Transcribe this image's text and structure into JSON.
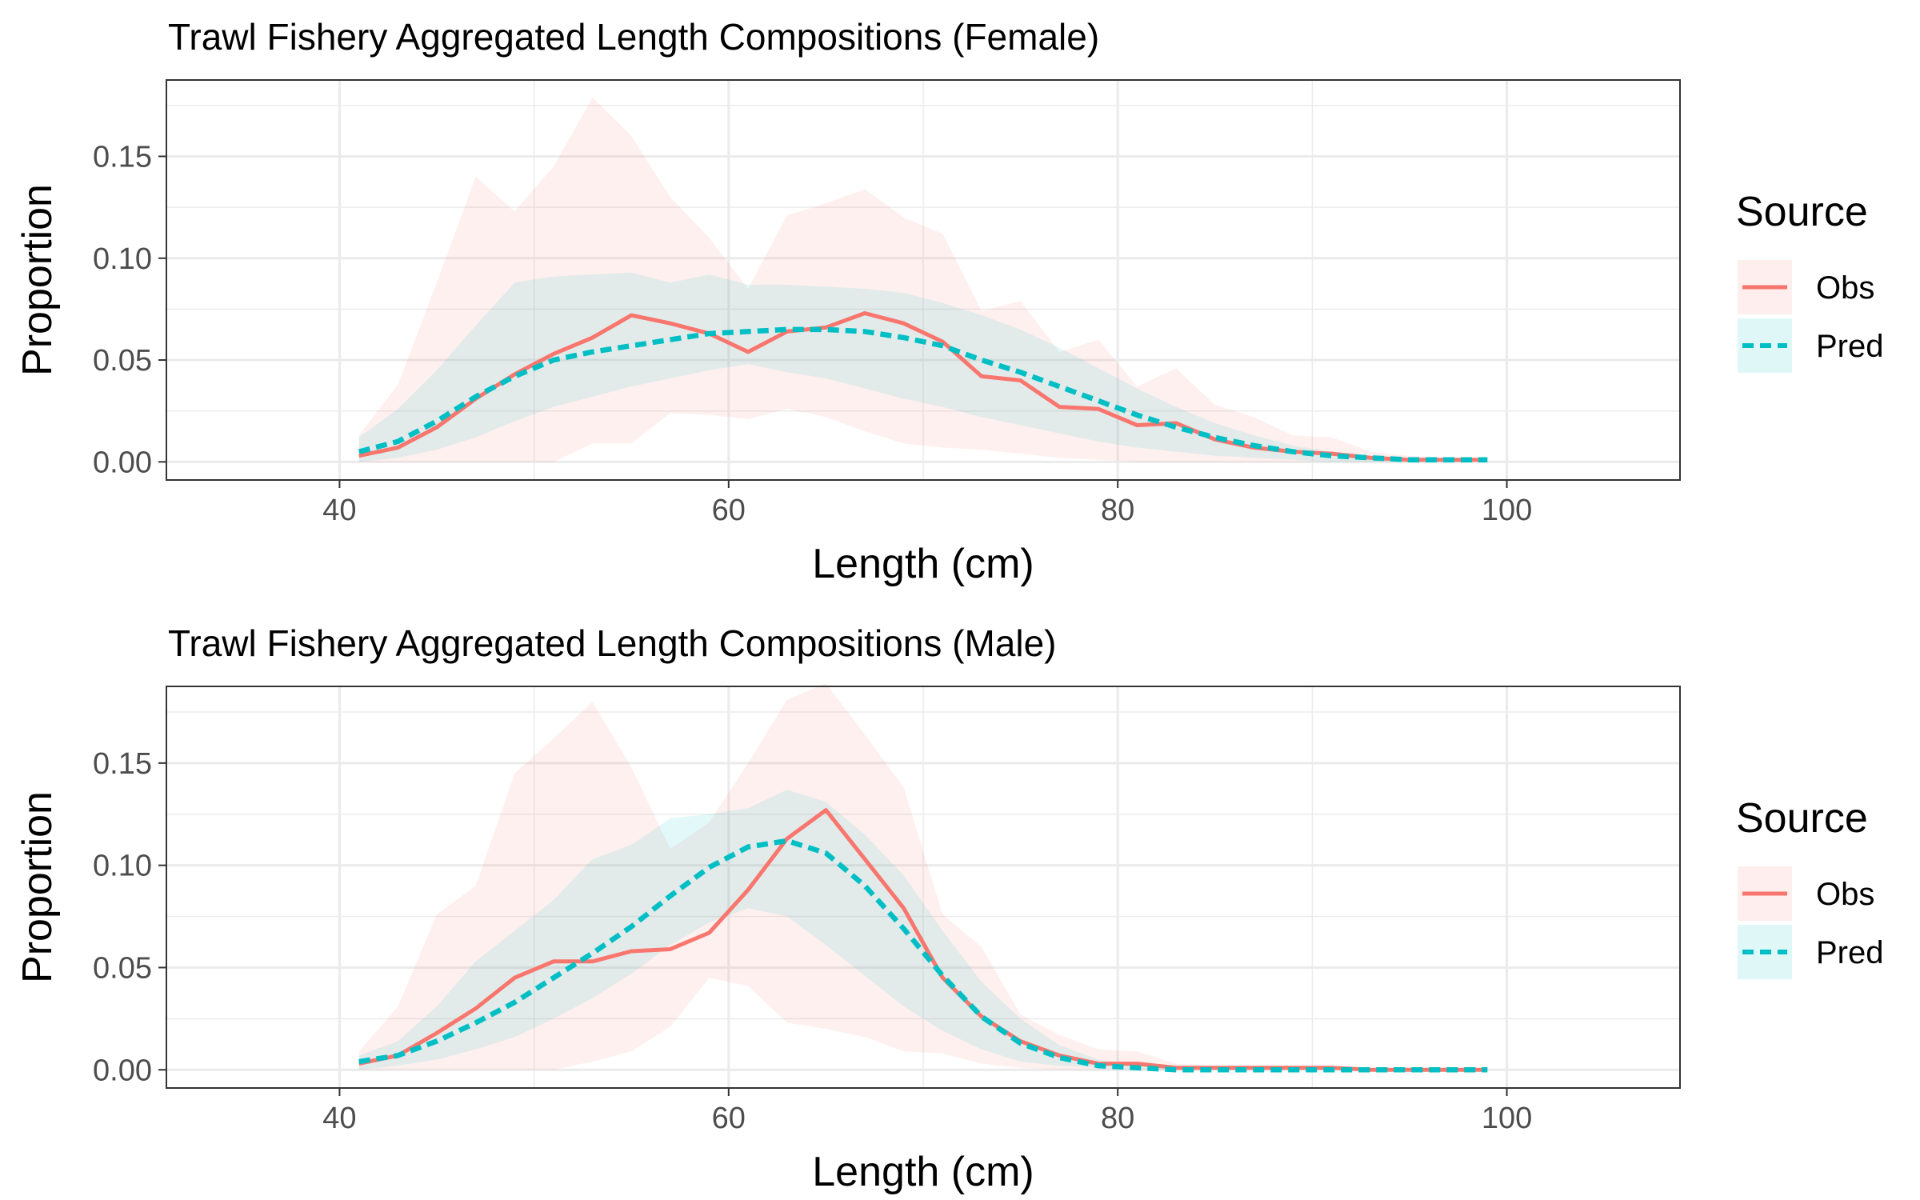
{
  "legend": {
    "title": "Source",
    "entries": [
      {
        "name": "Obs",
        "color": "#F8766D",
        "dash": "solid"
      },
      {
        "name": "Pred",
        "color": "#00BFC4",
        "dash": "dashed"
      }
    ]
  },
  "chart_data": [
    {
      "type": "line",
      "title": "Trawl Fishery Aggregated Length Compositions (Female)",
      "xlabel": "Length (cm)",
      "ylabel": "Proportion",
      "xlim": [
        31.1,
        108.9
      ],
      "ylim": [
        -0.0089,
        0.1875
      ],
      "x_ticks": [
        40,
        60,
        80,
        100
      ],
      "y_ticks": [
        0.0,
        0.05,
        0.1,
        0.15
      ],
      "y_tick_labels": [
        "0.00",
        "0.05",
        "0.10",
        "0.15"
      ],
      "grid": true,
      "legend_position": "right",
      "x": [
        41,
        43,
        45,
        47,
        49,
        51,
        53,
        55,
        57,
        59,
        61,
        63,
        65,
        67,
        69,
        71,
        73,
        75,
        77,
        79,
        81,
        83,
        85,
        87,
        89,
        91,
        93,
        95,
        97,
        99
      ],
      "series": [
        {
          "name": "Obs",
          "color": "#F8766D",
          "values": [
            0.003,
            0.007,
            0.017,
            0.031,
            0.043,
            0.053,
            0.061,
            0.072,
            0.068,
            0.063,
            0.054,
            0.064,
            0.066,
            0.073,
            0.068,
            0.059,
            0.042,
            0.04,
            0.027,
            0.026,
            0.018,
            0.019,
            0.011,
            0.007,
            0.005,
            0.004,
            0.002,
            0.001,
            0.001,
            0.001
          ],
          "lower": [
            0.0,
            0.0,
            0.0,
            0.0,
            0.0,
            0.0,
            0.009,
            0.009,
            0.024,
            0.023,
            0.021,
            0.026,
            0.022,
            0.015,
            0.009,
            0.007,
            0.006,
            0.004,
            0.002,
            0.001,
            0.0,
            0.0,
            0.0,
            0.0,
            0.0,
            0.0,
            0.0,
            0.0,
            0.0,
            0.0
          ],
          "upper": [
            0.013,
            0.038,
            0.088,
            0.14,
            0.123,
            0.145,
            0.179,
            0.16,
            0.13,
            0.11,
            0.085,
            0.121,
            0.127,
            0.134,
            0.12,
            0.112,
            0.074,
            0.079,
            0.054,
            0.06,
            0.037,
            0.046,
            0.028,
            0.022,
            0.013,
            0.012,
            0.005,
            0.003,
            0.002,
            0.002
          ]
        },
        {
          "name": "Pred",
          "color": "#00BFC4",
          "values": [
            0.005,
            0.01,
            0.02,
            0.032,
            0.042,
            0.05,
            0.054,
            0.057,
            0.06,
            0.063,
            0.064,
            0.065,
            0.065,
            0.064,
            0.061,
            0.057,
            0.05,
            0.044,
            0.037,
            0.03,
            0.023,
            0.017,
            0.012,
            0.008,
            0.005,
            0.003,
            0.002,
            0.001,
            0.001,
            0.001
          ],
          "lower": [
            0.0,
            0.002,
            0.006,
            0.012,
            0.02,
            0.027,
            0.032,
            0.037,
            0.041,
            0.045,
            0.048,
            0.044,
            0.041,
            0.036,
            0.031,
            0.027,
            0.022,
            0.018,
            0.014,
            0.01,
            0.007,
            0.005,
            0.003,
            0.002,
            0.001,
            0.0,
            0.0,
            0.0,
            0.0,
            0.0
          ],
          "upper": [
            0.012,
            0.026,
            0.045,
            0.067,
            0.088,
            0.091,
            0.092,
            0.093,
            0.088,
            0.092,
            0.087,
            0.087,
            0.086,
            0.085,
            0.083,
            0.078,
            0.072,
            0.065,
            0.056,
            0.046,
            0.036,
            0.027,
            0.019,
            0.013,
            0.008,
            0.005,
            0.003,
            0.002,
            0.001,
            0.001
          ]
        }
      ]
    },
    {
      "type": "line",
      "title": "Trawl Fishery Aggregated Length Compositions (Male)",
      "xlabel": "Length (cm)",
      "ylabel": "Proportion",
      "xlim": [
        31.1,
        108.9
      ],
      "ylim": [
        -0.0089,
        0.1875
      ],
      "x_ticks": [
        40,
        60,
        80,
        100
      ],
      "y_ticks": [
        0.0,
        0.05,
        0.1,
        0.15
      ],
      "y_tick_labels": [
        "0.00",
        "0.05",
        "0.10",
        "0.15"
      ],
      "grid": true,
      "legend_position": "right",
      "x": [
        41,
        43,
        45,
        47,
        49,
        51,
        53,
        55,
        57,
        59,
        61,
        63,
        65,
        67,
        69,
        71,
        73,
        75,
        77,
        79,
        81,
        83,
        85,
        87,
        89,
        91,
        93,
        95,
        97,
        99
      ],
      "series": [
        {
          "name": "Obs",
          "color": "#F8766D",
          "values": [
            0.003,
            0.007,
            0.018,
            0.03,
            0.045,
            0.053,
            0.053,
            0.058,
            0.059,
            0.067,
            0.088,
            0.113,
            0.127,
            0.103,
            0.079,
            0.045,
            0.026,
            0.014,
            0.007,
            0.003,
            0.003,
            0.001,
            0.001,
            0.001,
            0.001,
            0.001,
            0.0,
            0.0,
            0.0,
            0.0
          ],
          "lower": [
            0.0,
            0.0,
            0.0,
            0.0,
            0.0,
            0.0,
            0.004,
            0.009,
            0.021,
            0.045,
            0.041,
            0.023,
            0.02,
            0.016,
            0.009,
            0.008,
            0.003,
            0.001,
            0.0,
            0.0,
            0.0,
            0.0,
            0.0,
            0.0,
            0.0,
            0.0,
            0.0,
            0.0,
            0.0,
            0.0
          ],
          "upper": [
            0.009,
            0.031,
            0.076,
            0.09,
            0.145,
            0.162,
            0.18,
            0.148,
            0.108,
            0.121,
            0.15,
            0.181,
            0.189,
            0.164,
            0.138,
            0.076,
            0.06,
            0.027,
            0.017,
            0.01,
            0.009,
            0.003,
            0.002,
            0.002,
            0.002,
            0.001,
            0.001,
            0.001,
            0.0,
            0.0
          ]
        },
        {
          "name": "Pred",
          "color": "#00BFC4",
          "values": [
            0.004,
            0.007,
            0.014,
            0.023,
            0.033,
            0.045,
            0.057,
            0.07,
            0.085,
            0.099,
            0.109,
            0.112,
            0.106,
            0.09,
            0.069,
            0.046,
            0.026,
            0.013,
            0.006,
            0.002,
            0.001,
            0.0,
            0.0,
            0.0,
            0.0,
            0.0,
            0.0,
            0.0,
            0.0,
            0.0
          ],
          "lower": [
            0.0,
            0.002,
            0.005,
            0.01,
            0.016,
            0.025,
            0.035,
            0.047,
            0.061,
            0.072,
            0.079,
            0.075,
            0.061,
            0.046,
            0.031,
            0.019,
            0.01,
            0.004,
            0.002,
            0.001,
            0.0,
            0.0,
            0.0,
            0.0,
            0.0,
            0.0,
            0.0,
            0.0,
            0.0,
            0.0
          ],
          "upper": [
            0.007,
            0.014,
            0.031,
            0.053,
            0.068,
            0.083,
            0.103,
            0.11,
            0.123,
            0.125,
            0.128,
            0.137,
            0.131,
            0.115,
            0.095,
            0.068,
            0.043,
            0.025,
            0.012,
            0.005,
            0.002,
            0.001,
            0.0,
            0.0,
            0.0,
            0.0,
            0.0,
            0.0,
            0.0,
            0.0
          ]
        }
      ]
    }
  ]
}
